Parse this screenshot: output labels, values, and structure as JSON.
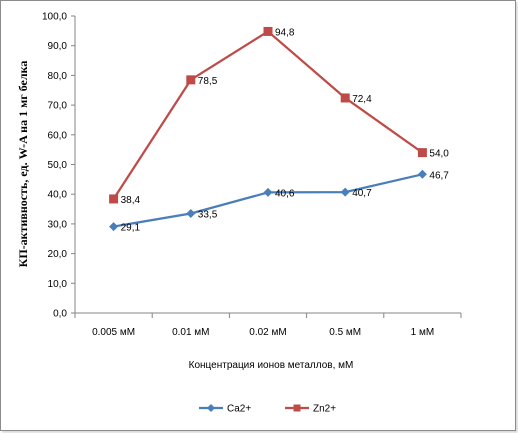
{
  "chart_data": {
    "type": "line",
    "title": "",
    "xlabel": "Концентрация ионов металлов, мМ",
    "ylabel": "КП-активность, ед. W-A на 1 мг белка",
    "categories": [
      "0.005 мМ",
      "0.01 мМ",
      "0.02 мМ",
      "0.5 мМ",
      "1 мМ"
    ],
    "ylim": [
      0,
      100
    ],
    "yticks": [
      "0,0",
      "10,0",
      "20,0",
      "30,0",
      "40,0",
      "50,0",
      "60,0",
      "70,0",
      "80,0",
      "90,0",
      "100,0"
    ],
    "grid": false,
    "legend_position": "bottom",
    "series": [
      {
        "name": "Ca2+",
        "values": [
          29.1,
          33.5,
          40.6,
          40.7,
          46.7
        ],
        "labels": [
          "29,1",
          "33,5",
          "40,6",
          "40,7",
          "46,7"
        ],
        "color": "#4a7ebb",
        "marker": "diamond"
      },
      {
        "name": "Zn2+",
        "values": [
          38.4,
          78.5,
          94.8,
          72.4,
          54.0
        ],
        "labels": [
          "38,4",
          "78,5",
          "94,8",
          "72,4",
          "54,0"
        ],
        "color": "#be4b48",
        "marker": "square"
      }
    ]
  }
}
